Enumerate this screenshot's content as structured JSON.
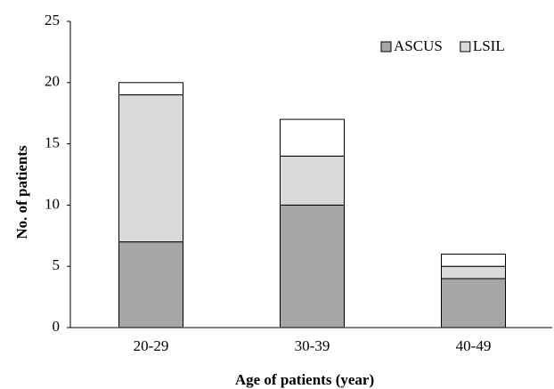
{
  "chart_data": {
    "type": "stacked_bar",
    "x_label": "Age of patients (year)",
    "y_label": "No. of patients",
    "categories": [
      "20-29",
      "30-39",
      "40-49"
    ],
    "series": [
      {
        "name": "ASCUS",
        "color": "#a6a6a6",
        "values": [
          7,
          10,
          4
        ]
      },
      {
        "name": "LSIL",
        "color": "#d9d9d9",
        "values": [
          12,
          4,
          1
        ]
      },
      {
        "color": "#ffffff",
        "values": [
          1,
          3,
          1
        ]
      }
    ],
    "ylim": [
      0,
      25
    ],
    "yticks": [
      0,
      5,
      10,
      15,
      20,
      25
    ],
    "legend": "top-right"
  }
}
